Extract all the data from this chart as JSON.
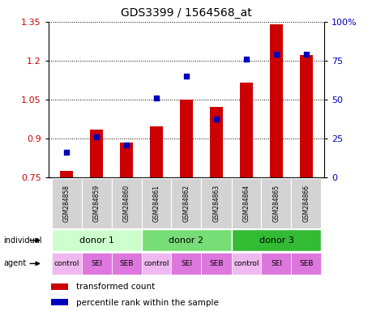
{
  "title": "GDS3399 / 1564568_at",
  "samples": [
    "GSM284858",
    "GSM284859",
    "GSM284860",
    "GSM284861",
    "GSM284862",
    "GSM284863",
    "GSM284864",
    "GSM284865",
    "GSM284866"
  ],
  "bar_values": [
    0.775,
    0.935,
    0.885,
    0.945,
    1.05,
    1.02,
    1.115,
    1.34,
    1.22
  ],
  "scatter_values": [
    0.845,
    0.905,
    0.875,
    1.055,
    1.14,
    0.975,
    1.205,
    1.225,
    1.225
  ],
  "ylim": [
    0.75,
    1.35
  ],
  "yticks_left": [
    0.75,
    0.9,
    1.05,
    1.2,
    1.35
  ],
  "ytick_labels_left": [
    "0.75",
    "0.9",
    "1.05",
    "1.2",
    "1.35"
  ],
  "yticks_right_labels": [
    "0",
    "25",
    "50",
    "75",
    "100%"
  ],
  "bar_color": "#CC0000",
  "scatter_color": "#0000BB",
  "bar_base": 0.75,
  "donor_colors": [
    "#ccffcc",
    "#77dd77",
    "#33bb33"
  ],
  "donor_labels": [
    "donor 1",
    "donor 2",
    "donor 3"
  ],
  "donor_starts": [
    0,
    3,
    6
  ],
  "donor_ends": [
    3,
    6,
    9
  ],
  "agent_labels": [
    "control",
    "SEI",
    "SEB",
    "control",
    "SEI",
    "SEB",
    "control",
    "SEI",
    "SEB"
  ],
  "agent_colors": [
    "#f0b8f0",
    "#dd77dd",
    "#dd77dd",
    "#f0b8f0",
    "#dd77dd",
    "#dd77dd",
    "#f0b8f0",
    "#dd77dd",
    "#dd77dd"
  ],
  "legend_bar_label": "transformed count",
  "legend_scatter_label": "percentile rank within the sample",
  "tick_color_left": "#CC0000",
  "tick_color_right": "#0000BB"
}
